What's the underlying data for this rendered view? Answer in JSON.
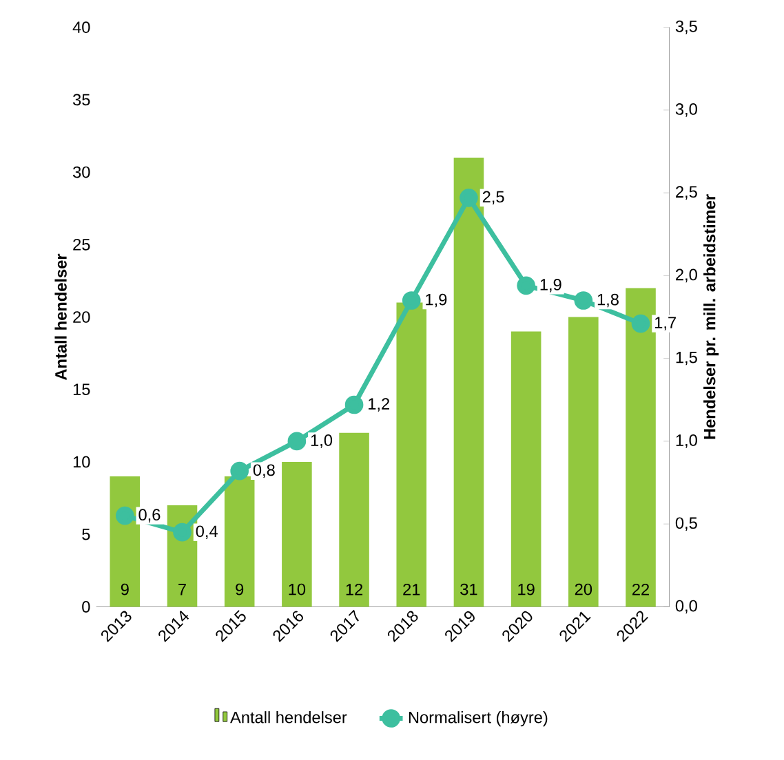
{
  "chart_data": {
    "type": "bar",
    "categories": [
      "2013",
      "2014",
      "2015",
      "2016",
      "2017",
      "2018",
      "2019",
      "2020",
      "2021",
      "2022"
    ],
    "series": [
      {
        "name": "Antall hendelser",
        "type": "bar",
        "color": "#92c83e",
        "values": [
          9,
          7,
          9,
          10,
          12,
          21,
          31,
          19,
          20,
          22
        ],
        "value_labels": [
          "9",
          "7",
          "9",
          "10",
          "12",
          "21",
          "31",
          "19",
          "20",
          "22"
        ]
      },
      {
        "name": "Normalisert (høyre)",
        "type": "line",
        "axis": "y2",
        "marker": "circle",
        "color": "#3dbf9f",
        "values": [
          0.55,
          0.45,
          0.82,
          1.0,
          1.22,
          1.85,
          2.47,
          1.94,
          1.85,
          1.71
        ],
        "value_labels": [
          "0,6",
          "0,4",
          "0,8",
          "1,0",
          "1,2",
          "1,9",
          "2,5",
          "1,9",
          "1,8",
          "1,7"
        ]
      }
    ],
    "ylabel": "Antall hendelser",
    "y2label": "Hendelser pr. mill. arbeidstimer",
    "ylim": [
      0,
      40
    ],
    "yticks": [
      0,
      5,
      10,
      15,
      20,
      25,
      30,
      35,
      40
    ],
    "y2lim": [
      0,
      3.5
    ],
    "y2ticks": [
      {
        "value": 0,
        "label": "0,0"
      },
      {
        "value": 0.5,
        "label": "0,5"
      },
      {
        "value": 1,
        "label": "1,0"
      },
      {
        "value": 1.5,
        "label": "1,5"
      },
      {
        "value": 2,
        "label": "2,0"
      },
      {
        "value": 2.5,
        "label": "2,5"
      },
      {
        "value": 3,
        "label": "3,0"
      },
      {
        "value": 3.5,
        "label": "3,5"
      }
    ],
    "grid": false,
    "legend": "bottom"
  }
}
